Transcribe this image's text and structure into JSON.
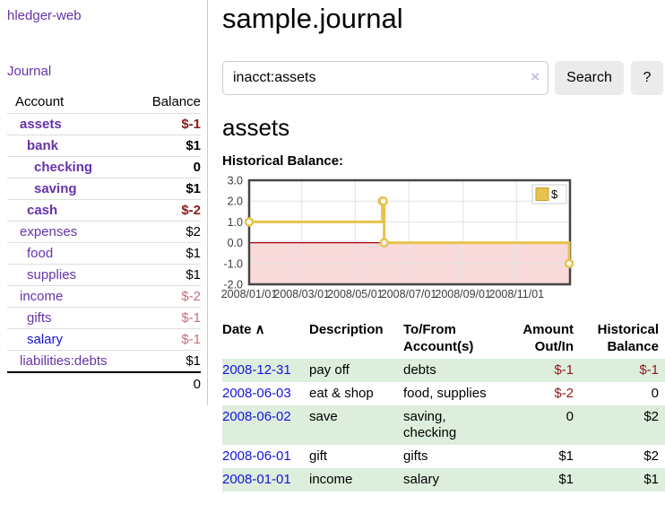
{
  "app": {
    "brand": "hledger-web",
    "nav_journal": "Journal"
  },
  "sidebar": {
    "header": {
      "account": "Account",
      "balance": "Balance"
    },
    "accounts": [
      {
        "name": "assets",
        "balance": "$-1",
        "depth": 1,
        "bold": true,
        "neg": "strong",
        "link": "visited"
      },
      {
        "name": "bank",
        "balance": "$1",
        "depth": 2,
        "bold": true,
        "neg": "none",
        "link": "visited"
      },
      {
        "name": "checking",
        "balance": "0",
        "depth": 3,
        "bold": true,
        "neg": "none",
        "link": "visited"
      },
      {
        "name": "saving",
        "balance": "$1",
        "depth": 3,
        "bold": true,
        "neg": "none",
        "link": "visited"
      },
      {
        "name": "cash",
        "balance": "$-2",
        "depth": 2,
        "bold": true,
        "neg": "strong",
        "link": "visited"
      },
      {
        "name": "expenses",
        "balance": "$2",
        "depth": 1,
        "bold": false,
        "neg": "none",
        "link": "visited"
      },
      {
        "name": "food",
        "balance": "$1",
        "depth": 2,
        "bold": false,
        "neg": "none",
        "link": "visited"
      },
      {
        "name": "supplies",
        "balance": "$1",
        "depth": 2,
        "bold": false,
        "neg": "none",
        "link": "visited"
      },
      {
        "name": "income",
        "balance": "$-2",
        "depth": 1,
        "bold": false,
        "neg": "soft",
        "link": "visited"
      },
      {
        "name": "gifts",
        "balance": "$-1",
        "depth": 2,
        "bold": false,
        "neg": "soft",
        "link": "visited"
      },
      {
        "name": "salary",
        "balance": "$-1",
        "depth": 2,
        "bold": false,
        "neg": "soft",
        "link": "new"
      },
      {
        "name": "liabilities:debts",
        "balance": "$1",
        "depth": 1,
        "bold": false,
        "neg": "none",
        "link": "visited"
      }
    ],
    "total": "0"
  },
  "header": {
    "title": "sample.journal"
  },
  "search": {
    "value": "inacct:assets",
    "clear": "×",
    "button": "Search",
    "help": "?"
  },
  "account_page": {
    "title": "assets",
    "chart_label": "Historical Balance:"
  },
  "chart_data": {
    "type": "line",
    "title": "Historical Balance",
    "step": true,
    "legend_position": "top-right",
    "ylim": [
      -2,
      3
    ],
    "xlim_days": [
      0,
      366
    ],
    "y_ticks": [
      3,
      2,
      1,
      0,
      -1,
      -2
    ],
    "x_ticks": [
      {
        "label": "2008/01/01",
        "day": 0
      },
      {
        "label": "2008/03/01",
        "day": 60
      },
      {
        "label": "2008/05/01",
        "day": 121
      },
      {
        "label": "2008/07/01",
        "day": 182
      },
      {
        "label": "2008/09/01",
        "day": 244
      },
      {
        "label": "2008/11/01",
        "day": 305
      }
    ],
    "series": [
      {
        "name": "$",
        "points": [
          {
            "date": "2008-01-01",
            "day": 0,
            "value": 1
          },
          {
            "date": "2008-06-01",
            "day": 152,
            "value": 2
          },
          {
            "date": "2008-06-02",
            "day": 153,
            "value": 2
          },
          {
            "date": "2008-06-03",
            "day": 154,
            "value": 0
          },
          {
            "date": "2008-12-31",
            "day": 365,
            "value": -1
          }
        ]
      }
    ],
    "colors": {
      "line": "#e8c24c",
      "swatch_border": "#c9a22c",
      "negative_fill": "#f9dada",
      "zero_line": "#a40000"
    }
  },
  "register": {
    "sort_icon": "∧",
    "columns": [
      {
        "key": "date",
        "line1": "Date",
        "line2": "",
        "align": "left",
        "sortable": true
      },
      {
        "key": "description",
        "line1": "Description",
        "line2": "",
        "align": "left",
        "sortable": false
      },
      {
        "key": "accounts",
        "line1": "To/From",
        "line2": "Account(s)",
        "align": "left",
        "sortable": false
      },
      {
        "key": "amount",
        "line1": "Amount",
        "line2": "Out/In",
        "align": "right",
        "sortable": false
      },
      {
        "key": "balance",
        "line1": "Historical",
        "line2": "Balance",
        "align": "right",
        "sortable": false
      }
    ],
    "rows": [
      {
        "date": "2008-12-31",
        "description": "pay off",
        "accounts": "debts",
        "amount": "$-1",
        "balance": "$-1",
        "amount_neg": true,
        "balance_neg": true
      },
      {
        "date": "2008-06-03",
        "description": "eat & shop",
        "accounts": "food, supplies",
        "amount": "$-2",
        "balance": "0",
        "amount_neg": true,
        "balance_neg": false
      },
      {
        "date": "2008-06-02",
        "description": "save",
        "accounts": "saving, checking",
        "amount": "0",
        "balance": "$2",
        "amount_neg": false,
        "balance_neg": false
      },
      {
        "date": "2008-06-01",
        "description": "gift",
        "accounts": "gifts",
        "amount": "$1",
        "balance": "$2",
        "amount_neg": false,
        "balance_neg": false
      },
      {
        "date": "2008-01-01",
        "description": "income",
        "accounts": "salary",
        "amount": "$1",
        "balance": "$1",
        "amount_neg": false,
        "balance_neg": false
      }
    ]
  }
}
